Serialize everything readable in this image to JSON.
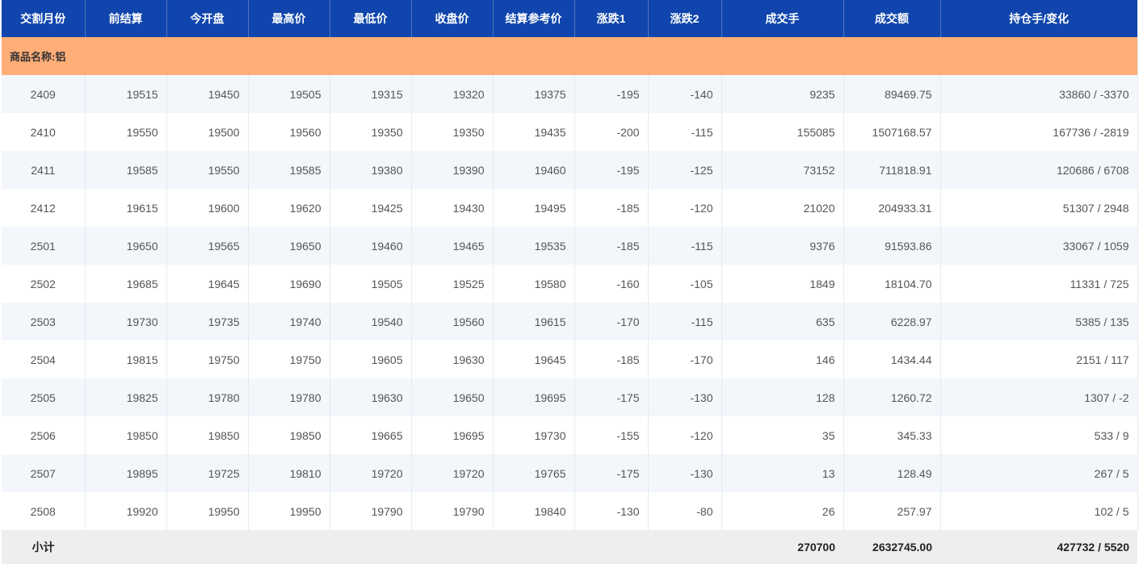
{
  "headers": [
    "交割月份",
    "前结算",
    "今开盘",
    "最高价",
    "最低价",
    "收盘价",
    "结算参考价",
    "涨跌1",
    "涨跌2",
    "成交手",
    "成交额",
    "持仓手/变化"
  ],
  "group_label": "商品名称:铝",
  "rows": [
    [
      "2409",
      "19515",
      "19450",
      "19505",
      "19315",
      "19320",
      "19375",
      "-195",
      "-140",
      "9235",
      "89469.75",
      "33860 / -3370"
    ],
    [
      "2410",
      "19550",
      "19500",
      "19560",
      "19350",
      "19350",
      "19435",
      "-200",
      "-115",
      "155085",
      "1507168.57",
      "167736 / -2819"
    ],
    [
      "2411",
      "19585",
      "19550",
      "19585",
      "19380",
      "19390",
      "19460",
      "-195",
      "-125",
      "73152",
      "711818.91",
      "120686 / 6708"
    ],
    [
      "2412",
      "19615",
      "19600",
      "19620",
      "19425",
      "19430",
      "19495",
      "-185",
      "-120",
      "21020",
      "204933.31",
      "51307 / 2948"
    ],
    [
      "2501",
      "19650",
      "19565",
      "19650",
      "19460",
      "19465",
      "19535",
      "-185",
      "-115",
      "9376",
      "91593.86",
      "33067 / 1059"
    ],
    [
      "2502",
      "19685",
      "19645",
      "19690",
      "19505",
      "19525",
      "19580",
      "-160",
      "-105",
      "1849",
      "18104.70",
      "11331 / 725"
    ],
    [
      "2503",
      "19730",
      "19735",
      "19740",
      "19540",
      "19560",
      "19615",
      "-170",
      "-115",
      "635",
      "6228.97",
      "5385 / 135"
    ],
    [
      "2504",
      "19815",
      "19750",
      "19750",
      "19605",
      "19630",
      "19645",
      "-185",
      "-170",
      "146",
      "1434.44",
      "2151 / 117"
    ],
    [
      "2505",
      "19825",
      "19780",
      "19780",
      "19630",
      "19650",
      "19695",
      "-175",
      "-130",
      "128",
      "1260.72",
      "1307 / -2"
    ],
    [
      "2506",
      "19850",
      "19850",
      "19850",
      "19665",
      "19695",
      "19730",
      "-155",
      "-120",
      "35",
      "345.33",
      "533 / 9"
    ],
    [
      "2507",
      "19895",
      "19725",
      "19810",
      "19720",
      "19720",
      "19765",
      "-175",
      "-130",
      "13",
      "128.49",
      "267 / 5"
    ],
    [
      "2508",
      "19920",
      "19950",
      "19950",
      "19790",
      "19790",
      "19840",
      "-130",
      "-80",
      "26",
      "257.97",
      "102 / 5"
    ]
  ],
  "total": {
    "label": "小计",
    "volume": "270700",
    "turnover": "2632745.00",
    "open_interest": "427732 / 5520"
  },
  "colors": {
    "header_bg": "#0f45ac",
    "group_bg": "#ffae78",
    "stripe": "#f3f6fb",
    "total_bg": "#eeeeee"
  }
}
